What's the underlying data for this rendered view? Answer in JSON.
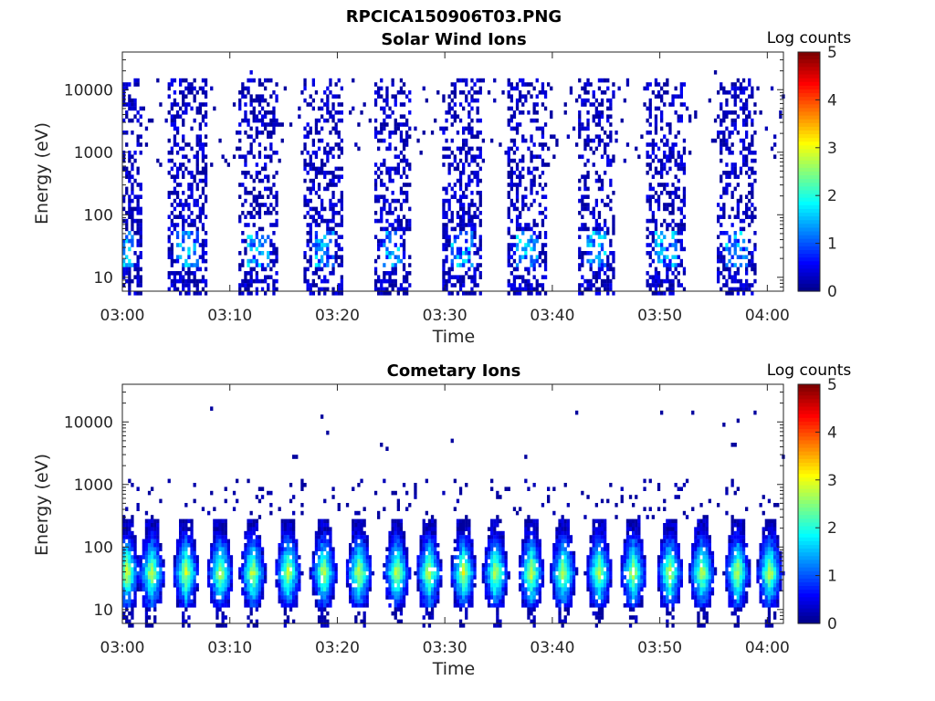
{
  "figure_title": "RPCICA150906T03.PNG",
  "chart_data": [
    {
      "type": "heatmap",
      "title": "Solar Wind Ions",
      "xlabel": "Time",
      "ylabel": "Energy (eV)",
      "x_ticks": [
        "03:00",
        "03:10",
        "03:20",
        "03:30",
        "03:40",
        "03:50",
        "04:00"
      ],
      "y_ticks": [
        "10",
        "100",
        "1000",
        "10000"
      ],
      "y_scale": "log",
      "ylim": [
        6,
        40000
      ],
      "xlim_minutes": [
        0,
        61.5
      ],
      "colorbar": {
        "label": "Log counts",
        "ticks": [
          "0",
          "1",
          "2",
          "3",
          "4",
          "5"
        ],
        "range": [
          0,
          5
        ]
      },
      "colormap": "jet",
      "sweep_centers_minutes": [
        0,
        6,
        12.5,
        18.5,
        25,
        31.5,
        37.5,
        44,
        50.5,
        57
      ],
      "peak_log_counts": 2.0
    },
    {
      "type": "heatmap",
      "title": "Cometary Ions",
      "xlabel": "Time",
      "ylabel": "Energy (eV)",
      "x_ticks": [
        "03:00",
        "03:10",
        "03:20",
        "03:30",
        "03:40",
        "03:50",
        "04:00"
      ],
      "y_ticks": [
        "10",
        "100",
        "1000",
        "10000"
      ],
      "y_scale": "log",
      "ylim": [
        6,
        40000
      ],
      "xlim_minutes": [
        0,
        61.5
      ],
      "colorbar": {
        "label": "Log counts",
        "ticks": [
          "0",
          "1",
          "2",
          "3",
          "4",
          "5"
        ],
        "range": [
          0,
          5
        ]
      },
      "colormap": "jet",
      "burst_centers_minutes": [
        0.3,
        2.6,
        5.8,
        9.0,
        12.0,
        15.3,
        18.6,
        21.9,
        25.4,
        28.4,
        31.6,
        34.6,
        37.9,
        40.9,
        44.2,
        47.4,
        50.8,
        53.8,
        57.1,
        60.1
      ],
      "peak_log_counts": 3.3
    }
  ]
}
